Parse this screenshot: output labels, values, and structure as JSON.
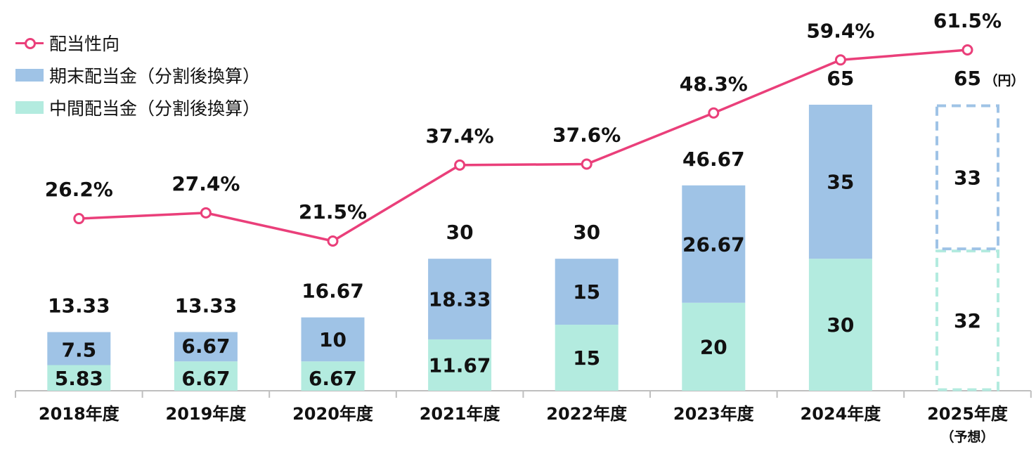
{
  "chart_data": {
    "type": "bar",
    "stacked": true,
    "categories": [
      "2018年度",
      "2019年度",
      "2020年度",
      "2021年度",
      "2022年度",
      "2023年度",
      "2024年度",
      "2025年度"
    ],
    "category_sublabels": [
      "",
      "",
      "",
      "",
      "",
      "",
      "",
      "（予想）"
    ],
    "series": [
      {
        "name": "中間配当金（分割後換算）",
        "color": "#b3ebdf",
        "values": [
          5.83,
          6.67,
          6.67,
          11.67,
          15,
          20,
          30,
          32
        ],
        "labels": [
          "5.83",
          "6.67",
          "6.67",
          "11.67",
          "15",
          "20",
          "30",
          "32"
        ]
      },
      {
        "name": "期末配当金（分割後換算）",
        "color": "#9fc3e6",
        "values": [
          7.5,
          6.67,
          10,
          18.33,
          15,
          26.67,
          35,
          33
        ],
        "labels": [
          "7.5",
          "6.67",
          "10",
          "18.33",
          "15",
          "26.67",
          "35",
          "33"
        ]
      }
    ],
    "totals": [
      "13.33",
      "13.33",
      "16.67",
      "30",
      "30",
      "46.67",
      "65",
      "65"
    ],
    "total_unit": "（円）",
    "forecast_index": 7,
    "line_series": {
      "name": "配当性向",
      "color": "#ea3f7a",
      "values": [
        26.2,
        27.4,
        21.5,
        37.4,
        37.6,
        48.3,
        59.4,
        61.5
      ],
      "labels": [
        "26.2%",
        "27.4%",
        "21.5%",
        "37.4%",
        "37.6%",
        "48.3%",
        "59.4%",
        "61.5%"
      ],
      "range": [
        -13,
        85
      ]
    },
    "ylim": [
      0,
      87
    ],
    "legend_position": "top-left"
  }
}
